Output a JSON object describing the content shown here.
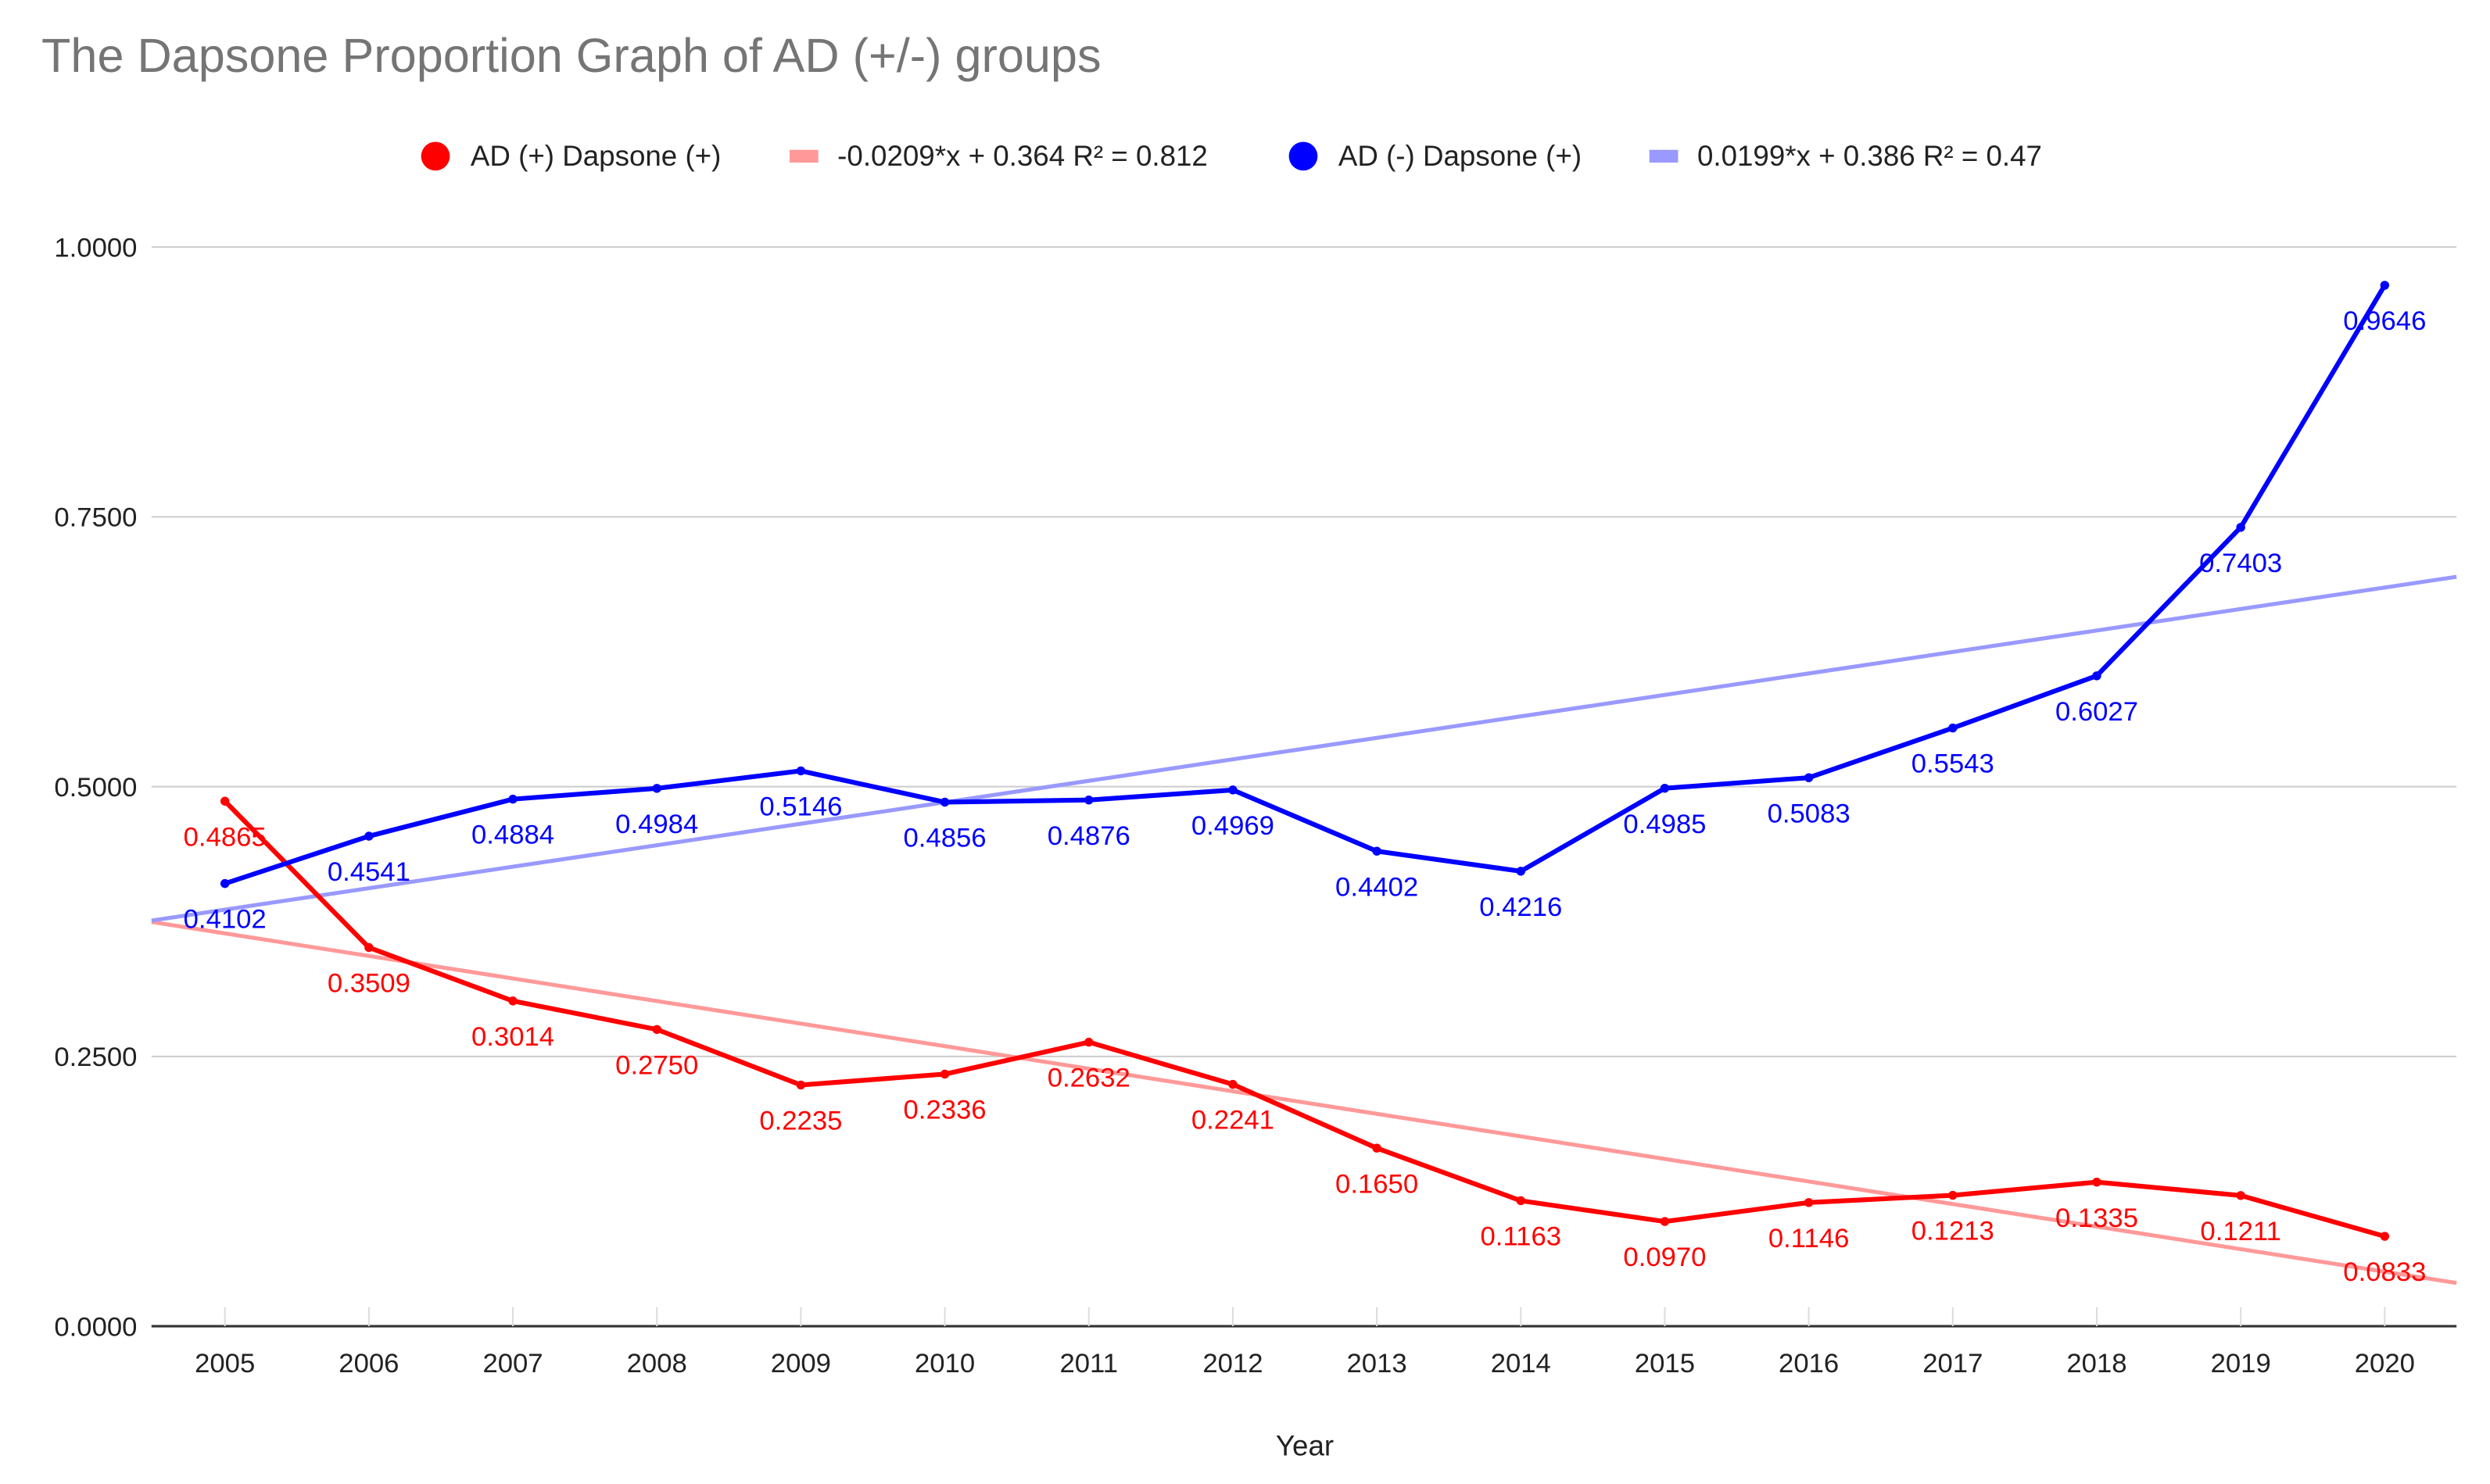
{
  "chart_data": {
    "type": "line",
    "title": "The Dapsone Proportion Graph of AD (+/-) groups",
    "xlabel": "Year",
    "ylabel": "",
    "categories": [
      "2005",
      "2006",
      "2007",
      "2008",
      "2009",
      "2010",
      "2011",
      "2012",
      "2013",
      "2014",
      "2015",
      "2016",
      "2017",
      "2018",
      "2019",
      "2020"
    ],
    "ylim": [
      0,
      1
    ],
    "yticks": [
      "0.0000",
      "0.2500",
      "0.5000",
      "0.7500",
      "1.0000"
    ],
    "ytick_values": [
      0,
      0.25,
      0.5,
      0.75,
      1.0
    ],
    "grid": true,
    "legend_position": "top",
    "series": [
      {
        "name": "AD (+) Dapsone (+)",
        "color": "#ff0000",
        "values": [
          0.4865,
          0.3509,
          0.3014,
          0.275,
          0.2235,
          0.2336,
          0.2632,
          0.2241,
          0.165,
          0.1163,
          0.097,
          0.1146,
          0.1213,
          0.1335,
          0.1211,
          0.0833
        ],
        "labels": [
          "0.4865",
          "0.3509",
          "0.3014",
          "0.2750",
          "0.2235",
          "0.2336",
          "0.2632",
          "0.2241",
          "0.1650",
          "0.1163",
          "0.0970",
          "0.1146",
          "0.1213",
          "0.1335",
          "0.1211",
          "0.0833"
        ]
      },
      {
        "name": "AD (-) Dapsone (+)",
        "color": "#0000ff",
        "values": [
          0.4102,
          0.4541,
          0.4884,
          0.4984,
          0.5146,
          0.4856,
          0.4876,
          0.4969,
          0.4402,
          0.4216,
          0.4985,
          0.5083,
          0.5543,
          0.6027,
          0.7403,
          0.9646
        ],
        "labels": [
          "0.4102",
          "0.4541",
          "0.4884",
          "0.4984",
          "0.5146",
          "0.4856",
          "0.4876",
          "0.4969",
          "0.4402",
          "0.4216",
          "0.4985",
          "0.5083",
          "0.5543",
          "0.6027",
          "0.7403",
          "0.9646"
        ]
      }
    ],
    "trendlines": [
      {
        "label": "-0.0209*x + 0.364 R² = 0.812",
        "slope": -0.0209,
        "intercept": 0.364,
        "r2": 0.812,
        "color": "#ff9999"
      },
      {
        "label": "0.0199*x + 0.386 R² = 0.47",
        "slope": 0.0199,
        "intercept": 0.386,
        "r2": 0.47,
        "color": "#9999ff"
      }
    ]
  }
}
